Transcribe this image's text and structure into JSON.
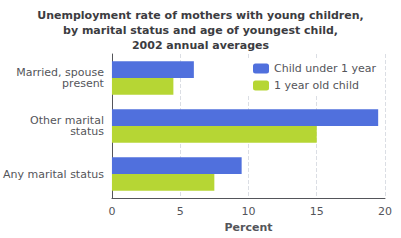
{
  "chart_data": {
    "type": "bar",
    "orientation": "horizontal",
    "title": "Unemployment rate of mothers with young children,\nby marital status and age of youngest child,\n2002 annual averages",
    "categories": [
      "Any marital status",
      "Other marital\nstatus",
      "Married, spouse\npresent"
    ],
    "series": [
      {
        "name": "Child under 1 year",
        "values": [
          9.5,
          19.5,
          6.0
        ]
      },
      {
        "name": "1 year old child",
        "values": [
          7.5,
          15.0,
          4.5
        ]
      }
    ],
    "xlabel": "Percent",
    "xlim": [
      0,
      20
    ],
    "xticks": [
      0,
      5,
      10,
      15,
      20
    ],
    "grid": true,
    "legend": "upper right"
  }
}
